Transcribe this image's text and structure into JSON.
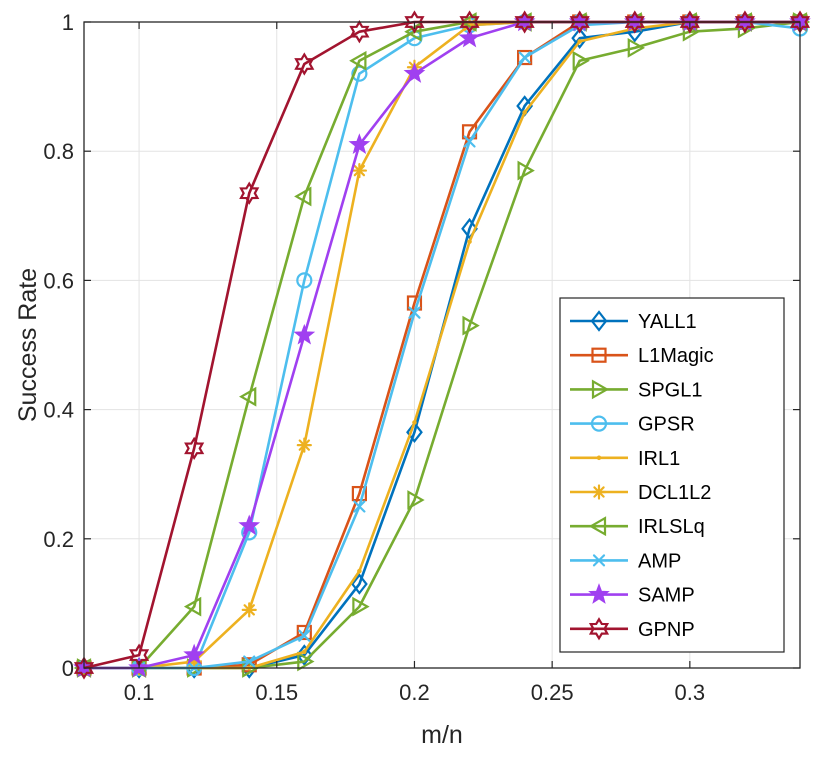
{
  "chart_data": {
    "type": "line",
    "title": "",
    "xlabel": "m/n",
    "ylabel": "Success Rate",
    "xlim": [
      0.08,
      0.34
    ],
    "ylim": [
      0,
      1
    ],
    "xticks": [
      0.1,
      0.15,
      0.2,
      0.25,
      0.3
    ],
    "xtick_labels": [
      "0.1",
      "0.15",
      "0.2",
      "0.25",
      "0.3"
    ],
    "yticks": [
      0,
      0.2,
      0.4,
      0.6,
      0.8,
      1
    ],
    "ytick_labels": [
      "0",
      "0.2",
      "0.4",
      "0.6",
      "0.8",
      "1"
    ],
    "grid": true,
    "legend_position": "bottom-right",
    "x": [
      0.08,
      0.1,
      0.12,
      0.14,
      0.16,
      0.18,
      0.2,
      0.22,
      0.24,
      0.26,
      0.28,
      0.3,
      0.32,
      0.34
    ],
    "series": [
      {
        "name": "YALL1",
        "color": "#0072BD",
        "marker": "diamond",
        "values": [
          0,
          0,
          0,
          0,
          0.02,
          0.13,
          0.365,
          0.68,
          0.87,
          0.975,
          0.985,
          1,
          1,
          1
        ]
      },
      {
        "name": "L1Magic",
        "color": "#D95319",
        "marker": "square",
        "values": [
          0,
          0,
          0,
          0.005,
          0.055,
          0.27,
          0.565,
          0.83,
          0.945,
          1,
          1,
          1,
          1,
          1
        ]
      },
      {
        "name": "SPGL1",
        "color": "#77AC30",
        "marker": "triangle-right",
        "values": [
          0,
          0,
          0,
          0,
          0.01,
          0.095,
          0.26,
          0.53,
          0.77,
          0.94,
          0.96,
          0.985,
          0.99,
          1
        ]
      },
      {
        "name": "GPSR",
        "color": "#4DBEEE",
        "marker": "circle",
        "values": [
          0,
          0,
          0,
          0.21,
          0.6,
          0.92,
          0.975,
          0.995,
          1,
          1,
          1,
          1,
          1,
          0.99
        ]
      },
      {
        "name": "IRL1",
        "color": "#EDB120",
        "marker": "point",
        "values": [
          0,
          0,
          0,
          0,
          0.025,
          0.15,
          0.38,
          0.66,
          0.86,
          0.97,
          0.99,
          1,
          1,
          1
        ]
      },
      {
        "name": "DCL1L2",
        "color": "#EDB120",
        "marker": "asterisk",
        "values": [
          0,
          0,
          0.01,
          0.09,
          0.345,
          0.77,
          0.93,
          0.995,
          1,
          1,
          1,
          1,
          1,
          1
        ]
      },
      {
        "name": "IRLSLq",
        "color": "#77AC30",
        "marker": "triangle-left",
        "values": [
          0,
          0,
          0.095,
          0.42,
          0.73,
          0.94,
          0.985,
          1,
          1,
          1,
          1,
          1,
          1,
          1
        ]
      },
      {
        "name": "AMP",
        "color": "#4DBEEE",
        "marker": "x",
        "values": [
          0,
          0,
          0,
          0.01,
          0.05,
          0.25,
          0.55,
          0.815,
          0.945,
          0.995,
          1,
          1,
          1,
          1
        ]
      },
      {
        "name": "SAMP",
        "color": "#A040F0",
        "marker": "pentagram",
        "values": [
          0,
          0,
          0.02,
          0.22,
          0.515,
          0.81,
          0.92,
          0.975,
          1,
          1,
          1,
          1,
          1,
          1
        ]
      },
      {
        "name": "GPNP",
        "color": "#A2142F",
        "marker": "hexagram",
        "values": [
          0,
          0.02,
          0.34,
          0.735,
          0.935,
          0.985,
          1,
          1,
          1,
          1,
          1,
          1,
          1,
          1
        ]
      }
    ]
  }
}
